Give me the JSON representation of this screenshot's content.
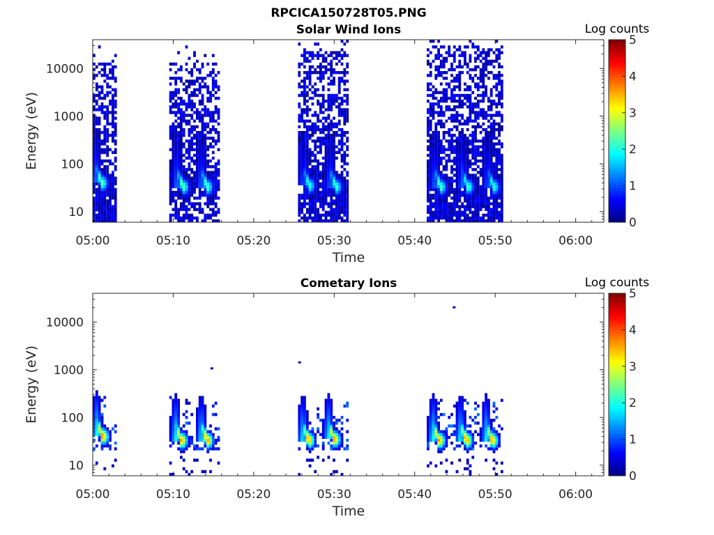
{
  "figure": {
    "title": "RPCICA150728T05.PNG"
  },
  "chart_data": [
    {
      "type": "heatmap",
      "title": "Solar Wind Ions",
      "xlabel": "Time",
      "ylabel": "Energy (eV)",
      "x_ticks": [
        "05:00",
        "05:10",
        "05:20",
        "05:30",
        "05:40",
        "05:50",
        "06:00"
      ],
      "x_range_minutes": [
        0,
        63.5
      ],
      "y_ticks": [
        "10",
        "100",
        "1000",
        "10000"
      ],
      "y_scale": "log",
      "y_range": [
        6,
        40000
      ],
      "colorbar": {
        "label": "Log counts",
        "ticks": [
          "0",
          "1",
          "2",
          "3",
          "4",
          "5"
        ],
        "range": [
          0,
          5
        ],
        "colormap": "jet"
      },
      "sweeps": [
        {
          "start_min": 0.0,
          "end_min": 3.0,
          "top_eV": 14000,
          "dark_floor": true,
          "peaks": [
            {
              "t_min": 1.1,
              "energy_eV": 40,
              "log_counts": 2.4
            }
          ]
        },
        {
          "start_min": 9.5,
          "end_min": 15.8,
          "top_eV": 14000,
          "dark_floor": false,
          "peaks": [
            {
              "t_min": 11.2,
              "energy_eV": 33,
              "log_counts": 2.4
            },
            {
              "t_min": 14.2,
              "energy_eV": 33,
              "log_counts": 2.3
            }
          ]
        },
        {
          "start_min": 25.5,
          "end_min": 31.8,
          "top_eV": 22000,
          "dark_floor": true,
          "peaks": [
            {
              "t_min": 26.9,
              "energy_eV": 35,
              "log_counts": 2.1
            },
            {
              "t_min": 30.2,
              "energy_eV": 33,
              "log_counts": 2.2
            }
          ]
        },
        {
          "start_min": 41.5,
          "end_min": 51.0,
          "top_eV": 30000,
          "dark_floor": true,
          "peaks": [
            {
              "t_min": 43.2,
              "energy_eV": 33,
              "log_counts": 2.3
            },
            {
              "t_min": 46.6,
              "energy_eV": 33,
              "log_counts": 2.2
            },
            {
              "t_min": 49.8,
              "energy_eV": 33,
              "log_counts": 2.1
            }
          ]
        }
      ]
    },
    {
      "type": "heatmap",
      "title": "Cometary Ions",
      "xlabel": "Time",
      "ylabel": "Energy (eV)",
      "x_ticks": [
        "05:00",
        "05:10",
        "05:20",
        "05:30",
        "05:40",
        "05:50",
        "06:00"
      ],
      "x_range_minutes": [
        0,
        63.5
      ],
      "y_ticks": [
        "10",
        "100",
        "1000",
        "10000"
      ],
      "y_scale": "log",
      "y_range": [
        6,
        40000
      ],
      "colorbar": {
        "label": "Log counts",
        "ticks": [
          "0",
          "1",
          "2",
          "3",
          "4",
          "5"
        ],
        "range": [
          0,
          5
        ],
        "colormap": "jet"
      },
      "sweeps": [
        {
          "start_min": 0.0,
          "end_min": 3.0,
          "top_eV": 350,
          "peaks": [
            {
              "t_min": 1.2,
              "energy_eV": 40,
              "log_counts": 3.7
            }
          ]
        },
        {
          "start_min": 9.5,
          "end_min": 15.8,
          "top_eV": 300,
          "peaks": [
            {
              "t_min": 11.0,
              "energy_eV": 33,
              "log_counts": 3.6
            },
            {
              "t_min": 14.2,
              "energy_eV": 33,
              "log_counts": 3.6
            }
          ]
        },
        {
          "start_min": 25.5,
          "end_min": 31.8,
          "top_eV": 400,
          "peaks": [
            {
              "t_min": 26.8,
              "energy_eV": 33,
              "log_counts": 3.5
            },
            {
              "t_min": 30.0,
              "energy_eV": 35,
              "log_counts": 3.6
            }
          ]
        },
        {
          "start_min": 41.5,
          "end_min": 51.0,
          "top_eV": 400,
          "peaks": [
            {
              "t_min": 43.0,
              "energy_eV": 33,
              "log_counts": 3.7
            },
            {
              "t_min": 46.4,
              "energy_eV": 33,
              "log_counts": 3.6
            },
            {
              "t_min": 49.6,
              "energy_eV": 33,
              "log_counts": 3.5
            }
          ]
        }
      ],
      "isolated_points": [
        {
          "t_min": 44.9,
          "energy_eV": 20000,
          "log_counts": 0.3
        },
        {
          "t_min": 14.8,
          "energy_eV": 1050,
          "log_counts": 0.3
        },
        {
          "t_min": 25.7,
          "energy_eV": 1400,
          "log_counts": 0.3
        }
      ]
    }
  ]
}
